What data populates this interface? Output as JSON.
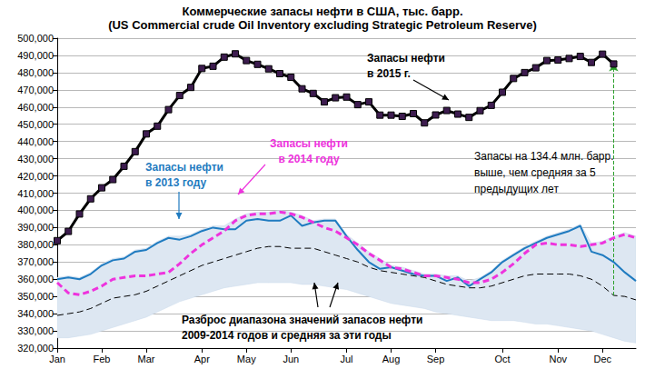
{
  "chart_data": {
    "type": "line",
    "title": "Коммерческие запасы нефти в США, тыс. барр.",
    "subtitle": "(US Commercial crude Oil Inventory excluding Strategic Petroleum Reserve)",
    "categories": [
      "Jan",
      null,
      null,
      null,
      "Feb",
      null,
      null,
      null,
      "Mar",
      null,
      null,
      null,
      null,
      "Apr",
      null,
      null,
      null,
      "May",
      null,
      null,
      null,
      "Jun",
      null,
      null,
      null,
      null,
      "Jul",
      null,
      null,
      null,
      "Aug",
      null,
      null,
      null,
      "Sep",
      null,
      null,
      null,
      null,
      null,
      "Oct",
      null,
      null,
      null,
      null,
      "Nov",
      null,
      null,
      null,
      "Dec",
      null,
      null,
      null
    ],
    "ylim": [
      320000,
      500000
    ],
    "yticks": [
      {
        "value": 320000,
        "label": "320,000"
      },
      {
        "value": 330000,
        "label": "330,000"
      },
      {
        "value": 340000,
        "label": "340,000"
      },
      {
        "value": 350000,
        "label": "350,000"
      },
      {
        "value": 360000,
        "label": "360,000"
      },
      {
        "value": 370000,
        "label": "370,000"
      },
      {
        "value": 380000,
        "label": "380,000"
      },
      {
        "value": 390000,
        "label": "390,000"
      },
      {
        "value": 400000,
        "label": "400,000"
      },
      {
        "value": 410000,
        "label": "410,000"
      },
      {
        "value": 420000,
        "label": "420,000"
      },
      {
        "value": 430000,
        "label": "430,000"
      },
      {
        "value": 440000,
        "label": "440,000"
      },
      {
        "value": 450000,
        "label": "450,000"
      },
      {
        "value": 460000,
        "label": "460,000"
      },
      {
        "value": 470000,
        "label": "470,000"
      },
      {
        "value": 480000,
        "label": "480,000"
      },
      {
        "value": 490000,
        "label": "490,000"
      },
      {
        "value": 500000,
        "label": "500,000"
      }
    ],
    "grid": true,
    "annotations": [
      "Запасы на 134.4 млн. барр.\nвыше, чем средняя за 5\nпредыдущих лет"
    ],
    "series": [
      {
        "name": "Запасы нефти\nв 2015 г.",
        "color": "#000000",
        "marker": "square",
        "line_style": "solid",
        "values": [
          382400,
          387800,
          397900,
          406700,
          413100,
          417900,
          425600,
          434100,
          444400,
          448900,
          458500,
          466700,
          471400,
          482400,
          483700,
          489000,
          490900,
          487000,
          484800,
          482200,
          479400,
          477300,
          470600,
          467900,
          463000,
          465400,
          465800,
          461400,
          463000,
          455300,
          455300,
          454600,
          456200,
          450800,
          455400,
          458000,
          455900,
          454000,
          457900,
          461000,
          468600,
          476600,
          480000,
          482800,
          487000,
          487300,
          488200,
          489400,
          485900,
          490700,
          485000,
          null,
          null
        ]
      },
      {
        "name": "Запасы нефти\nв 2014 году",
        "color": "#ee33dd",
        "line_style": "dashed",
        "values": [
          358000,
          352000,
          351000,
          353000,
          356000,
          360000,
          361000,
          362000,
          362000,
          363000,
          364000,
          369000,
          375000,
          380000,
          384000,
          388000,
          394000,
          397000,
          398000,
          398000,
          399000,
          398000,
          396000,
          393000,
          390000,
          388000,
          384000,
          380000,
          375000,
          371000,
          367000,
          366000,
          364000,
          362000,
          362000,
          361000,
          360000,
          358000,
          358000,
          360000,
          364000,
          369000,
          375000,
          380000,
          381000,
          380000,
          380000,
          379000,
          380000,
          381000,
          384000,
          386000,
          384000
        ]
      },
      {
        "name": "Запасы нефти\nв 2013 году",
        "color": "#1f7bc0",
        "line_style": "solid",
        "values": [
          360000,
          361000,
          360000,
          363000,
          368000,
          371000,
          372000,
          376000,
          377000,
          381000,
          384000,
          383000,
          385000,
          388000,
          390000,
          389000,
          389000,
          394000,
          395000,
          394000,
          394000,
          397000,
          391000,
          393000,
          394000,
          394000,
          385000,
          377000,
          370000,
          366000,
          367000,
          365000,
          363000,
          362000,
          362000,
          359000,
          361000,
          356000,
          360000,
          364000,
          370000,
          374000,
          378000,
          381000,
          384000,
          386000,
          388000,
          391000,
          376000,
          374000,
          370000,
          364000,
          359000
        ]
      },
      {
        "name": "Разброс диапазона значений запасов нефти\n2009-2014 годов и средняя за эти годы",
        "color": "#000000",
        "line_style": "dashed",
        "values": [
          339000,
          340000,
          341000,
          343000,
          346000,
          349000,
          350000,
          351000,
          353000,
          356000,
          359000,
          362000,
          365000,
          368000,
          370000,
          372000,
          374000,
          376000,
          378000,
          379000,
          379000,
          378000,
          378000,
          378000,
          376000,
          374000,
          372000,
          370000,
          367000,
          365000,
          364000,
          363000,
          362000,
          361000,
          359000,
          357000,
          356000,
          355000,
          355000,
          356000,
          358000,
          360000,
          362000,
          363000,
          363000,
          363000,
          363000,
          362000,
          360000,
          356000,
          350600,
          350000,
          348000
        ],
        "low": [
          326000,
          326000,
          327000,
          328000,
          330000,
          332000,
          334000,
          336000,
          338000,
          341000,
          344000,
          347000,
          349000,
          351000,
          353000,
          355000,
          356000,
          357000,
          358000,
          358000,
          358000,
          358000,
          357000,
          357000,
          356000,
          355000,
          354000,
          352000,
          350000,
          348000,
          346000,
          345000,
          344000,
          343000,
          341000,
          340000,
          339000,
          338000,
          337000,
          336000,
          336000,
          336000,
          335000,
          334000,
          334000,
          333000,
          332000,
          331000,
          330000,
          328000,
          326000,
          324000,
          323000
        ],
        "high": [
          361000,
          362000,
          361000,
          364000,
          369000,
          372000,
          373000,
          377000,
          378000,
          382000,
          385000,
          385000,
          386000,
          389000,
          391000,
          391000,
          395000,
          398000,
          399000,
          399000,
          400000,
          399000,
          397000,
          394000,
          395000,
          395000,
          386000,
          381000,
          376000,
          372000,
          368000,
          367000,
          365000,
          363000,
          363000,
          362000,
          362000,
          359000,
          361000,
          365000,
          371000,
          375000,
          379000,
          382000,
          385000,
          387000,
          389000,
          392000,
          381000,
          382000,
          385000,
          387000,
          385000
        ]
      }
    ]
  }
}
